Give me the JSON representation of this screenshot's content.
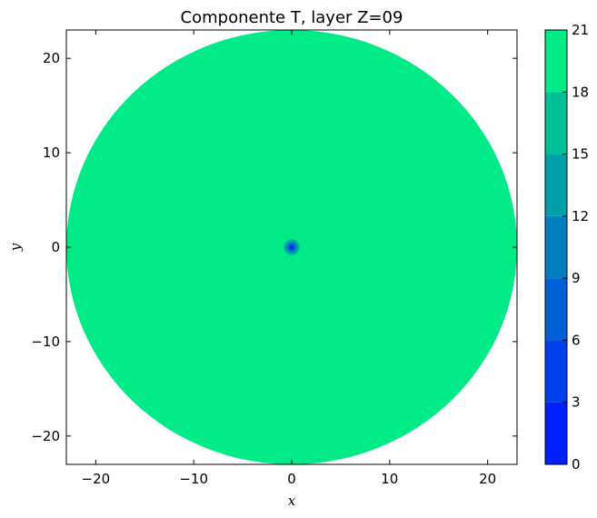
{
  "chart_data": {
    "type": "heatmap",
    "title": "Componente T, layer Z=09",
    "xlabel": "x",
    "ylabel": "y",
    "xlim": [
      -23,
      23
    ],
    "ylim": [
      -23,
      23
    ],
    "x_ticks": [
      -20,
      -10,
      0,
      10,
      20
    ],
    "y_ticks": [
      -20,
      -10,
      0,
      10,
      20
    ],
    "x_tick_labels": [
      "−20",
      "−10",
      "0",
      "10",
      "20"
    ],
    "y_tick_labels": [
      "−20",
      "−10",
      "0",
      "10",
      "20"
    ],
    "grid": false,
    "field": {
      "shape": "disk",
      "center": [
        0,
        0
      ],
      "radius": 23,
      "background_value": 19.5,
      "hotspot": {
        "center": [
          0,
          0
        ],
        "min_value": 1.5,
        "radius": 0.9
      }
    },
    "colorbar": {
      "levels": [
        0,
        3,
        6,
        9,
        12,
        15,
        18,
        21
      ],
      "labels": [
        "0",
        "3",
        "6",
        "9",
        "12",
        "15",
        "18",
        "21"
      ],
      "colors": [
        "#0020ff",
        "#0040ea",
        "#0060d5",
        "#0080bf",
        "#00a0aa",
        "#00c095",
        "#00ea88"
      ],
      "colormap": "winter"
    }
  }
}
